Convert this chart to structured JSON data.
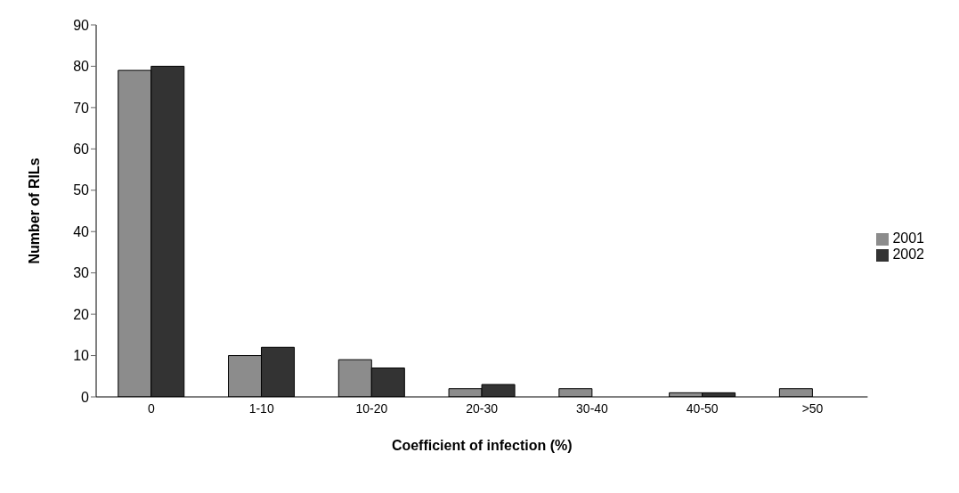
{
  "chart_data": {
    "type": "bar",
    "xlabel": "Coefficient of infection (%)",
    "ylabel": "Number of RILs",
    "categories": [
      "0",
      "1-10",
      "10-20",
      "20-30",
      "30-40",
      "40-50",
      ">50"
    ],
    "series": [
      {
        "name": "2001",
        "color": "#8c8c8c",
        "values": [
          79,
          10,
          9,
          2,
          2,
          1,
          2
        ]
      },
      {
        "name": "2002",
        "color": "#333333",
        "values": [
          80,
          12,
          7,
          3,
          0,
          1,
          0
        ]
      }
    ],
    "ylim": [
      0,
      90
    ],
    "yticks": [
      0,
      10,
      20,
      30,
      40,
      50,
      60,
      70,
      80,
      90
    ],
    "legend": "right"
  }
}
